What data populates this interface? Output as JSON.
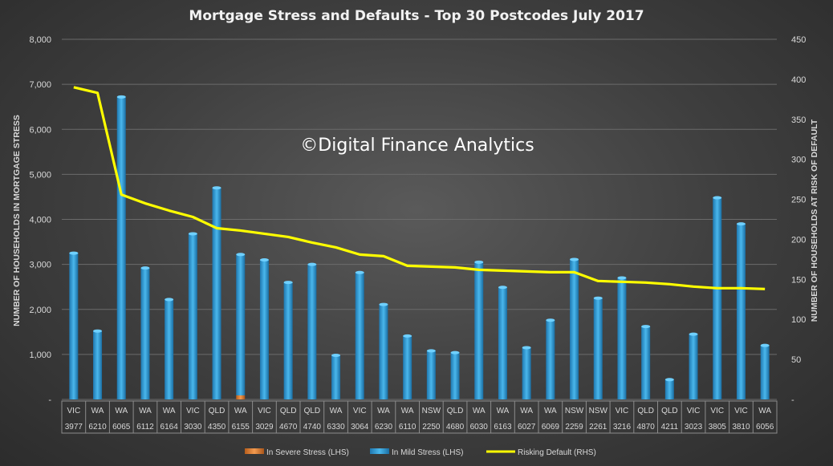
{
  "chart_data": {
    "type": "bar",
    "title": "Mortgage Stress and Defaults - Top 30 Postcodes July 2017",
    "watermark": "©Digital Finance Analytics",
    "ylabel": "NUMBER OF HOUSEHOLDS IN MORTGAGE STRESS",
    "y2label": "NUMBER OF HOUSEHOLDS AT RISK OF DEFAULT",
    "ylim": [
      0,
      8000
    ],
    "y_ticks": [
      "-",
      "1,000",
      "2,000",
      "3,000",
      "4,000",
      "5,000",
      "6,000",
      "7,000",
      "8,000"
    ],
    "y2lim": [
      0,
      450
    ],
    "y2_ticks": [
      "-",
      "50",
      "100",
      "150",
      "200",
      "250",
      "300",
      "350",
      "400",
      "450"
    ],
    "categories": [
      {
        "state": "VIC",
        "postcode": "3977"
      },
      {
        "state": "WA",
        "postcode": "6210"
      },
      {
        "state": "WA",
        "postcode": "6065"
      },
      {
        "state": "WA",
        "postcode": "6112"
      },
      {
        "state": "WA",
        "postcode": "6164"
      },
      {
        "state": "VIC",
        "postcode": "3030"
      },
      {
        "state": "QLD",
        "postcode": "4350"
      },
      {
        "state": "WA",
        "postcode": "6155"
      },
      {
        "state": "VIC",
        "postcode": "3029"
      },
      {
        "state": "QLD",
        "postcode": "4670"
      },
      {
        "state": "QLD",
        "postcode": "4740"
      },
      {
        "state": "WA",
        "postcode": "6330"
      },
      {
        "state": "VIC",
        "postcode": "3064"
      },
      {
        "state": "WA",
        "postcode": "6230"
      },
      {
        "state": "WA",
        "postcode": "6110"
      },
      {
        "state": "NSW",
        "postcode": "2250"
      },
      {
        "state": "QLD",
        "postcode": "4680"
      },
      {
        "state": "WA",
        "postcode": "6030"
      },
      {
        "state": "WA",
        "postcode": "6163"
      },
      {
        "state": "WA",
        "postcode": "6027"
      },
      {
        "state": "WA",
        "postcode": "6069"
      },
      {
        "state": "NSW",
        "postcode": "2259"
      },
      {
        "state": "NSW",
        "postcode": "2261"
      },
      {
        "state": "VIC",
        "postcode": "3216"
      },
      {
        "state": "QLD",
        "postcode": "4870"
      },
      {
        "state": "QLD",
        "postcode": "4211"
      },
      {
        "state": "VIC",
        "postcode": "3023"
      },
      {
        "state": "VIC",
        "postcode": "3805"
      },
      {
        "state": "VIC",
        "postcode": "3810"
      },
      {
        "state": "WA",
        "postcode": "6056"
      }
    ],
    "series": [
      {
        "name": "In Severe Stress (LHS)",
        "kind": "bar",
        "axis": "left",
        "color": "#e07b2a",
        "values": [
          0,
          0,
          0,
          0,
          0,
          0,
          0,
          90,
          0,
          0,
          0,
          0,
          0,
          0,
          0,
          0,
          0,
          0,
          0,
          0,
          0,
          0,
          0,
          0,
          0,
          0,
          0,
          0,
          0,
          0
        ]
      },
      {
        "name": "In Mild Stress (LHS)",
        "kind": "bar",
        "axis": "left",
        "color": "#2f9fd8",
        "values": [
          3250,
          1520,
          6720,
          2920,
          2220,
          3680,
          4700,
          3130,
          3100,
          2600,
          3000,
          980,
          2820,
          2110,
          1410,
          1080,
          1040,
          3050,
          2490,
          1150,
          1760,
          3110,
          2250,
          2700,
          1620,
          440,
          1450,
          4480,
          3900,
          1200
        ]
      },
      {
        "name": "Risking Default (RHS)",
        "kind": "line",
        "axis": "right",
        "color": "#ffff00",
        "values": [
          390,
          383,
          256,
          245,
          236,
          228,
          214,
          211,
          207,
          203,
          196,
          190,
          181,
          179,
          167,
          166,
          165,
          162,
          161,
          160,
          159,
          159,
          148,
          147,
          146,
          144,
          141,
          139,
          139,
          138
        ]
      }
    ],
    "grid": true,
    "legend_position": "bottom"
  }
}
